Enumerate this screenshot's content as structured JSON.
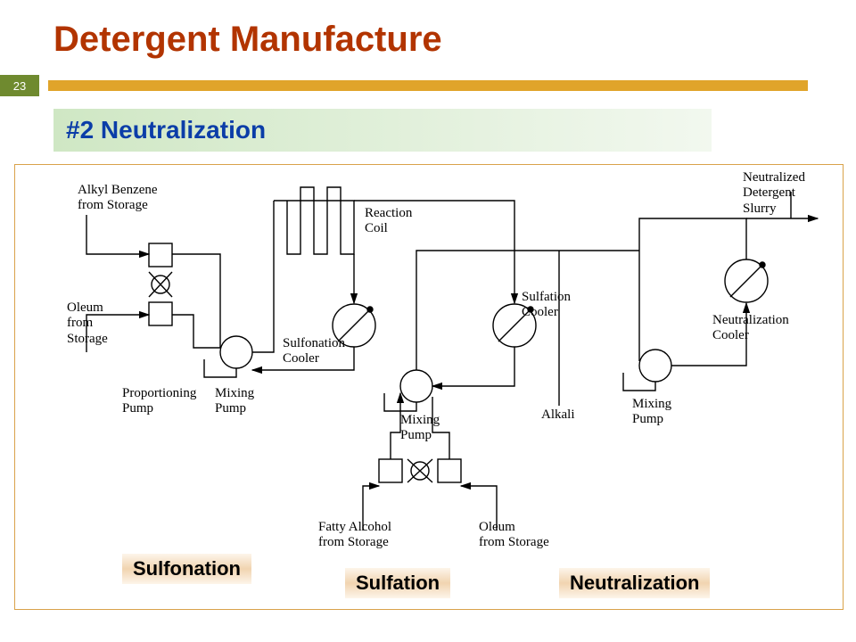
{
  "title": "Detergent Manufacture",
  "title_color": "#b23400",
  "page_number": "23",
  "badge_bg": "#6f8a2f",
  "accent_bar_color": "#e0a42a",
  "subtitle": "#2 Neutralization",
  "subtitle_color": "#0b3da8",
  "subtitle_bg_from": "#cfe7c4",
  "subtitle_bg_to": "#f2f8ef",
  "section_box_bg_from": "#f1d4b0",
  "section_box_bg_to": "#fdf5ea",
  "sections": {
    "sulfonation": "Sulfonation",
    "sulfation": "Sulfation",
    "neutralization": "Neutralization"
  },
  "labels": {
    "alkyl_benzene": "Alkyl Benzene\nfrom Storage",
    "oleum": "Oleum\nfrom\nStorage",
    "prop_pump": "Proportioning\nPump",
    "mixing_pump": "Mixing\nPump",
    "reaction_coil": "Reaction\nCoil",
    "sulfonation_cooler": "Sulfonation\nCooler",
    "sulfation_cooler": "Sulfation\nCooler",
    "fatty_alcohol": "Fatty Alcohol\nfrom Storage",
    "oleum_storage2": "Oleum\nfrom Storage",
    "alkali": "Alkali",
    "neutralization_cooler": "Neutralization\nCooler",
    "neutralized_slurry": "Neutralized\nDetergent\nSlurry"
  },
  "diagram": {
    "stroke": "#000000",
    "stroke_width": 1.4,
    "arrow_size": 8
  }
}
